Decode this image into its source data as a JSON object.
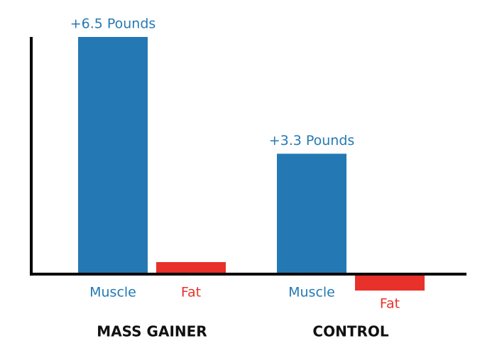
{
  "chart_data": {
    "type": "bar",
    "categories": [
      "MASS GAINER",
      "CONTROL"
    ],
    "series": [
      {
        "name": "Muscle",
        "color": "#2479b5",
        "values": [
          6.5,
          3.3
        ],
        "value_labels": [
          "+6.5 Pounds",
          "+3.3 Pounds"
        ]
      },
      {
        "name": "Fat",
        "color": "#e8312a",
        "values": [
          0.33,
          -0.45
        ]
      }
    ],
    "ylim": [
      -0.8,
      6.5
    ]
  }
}
